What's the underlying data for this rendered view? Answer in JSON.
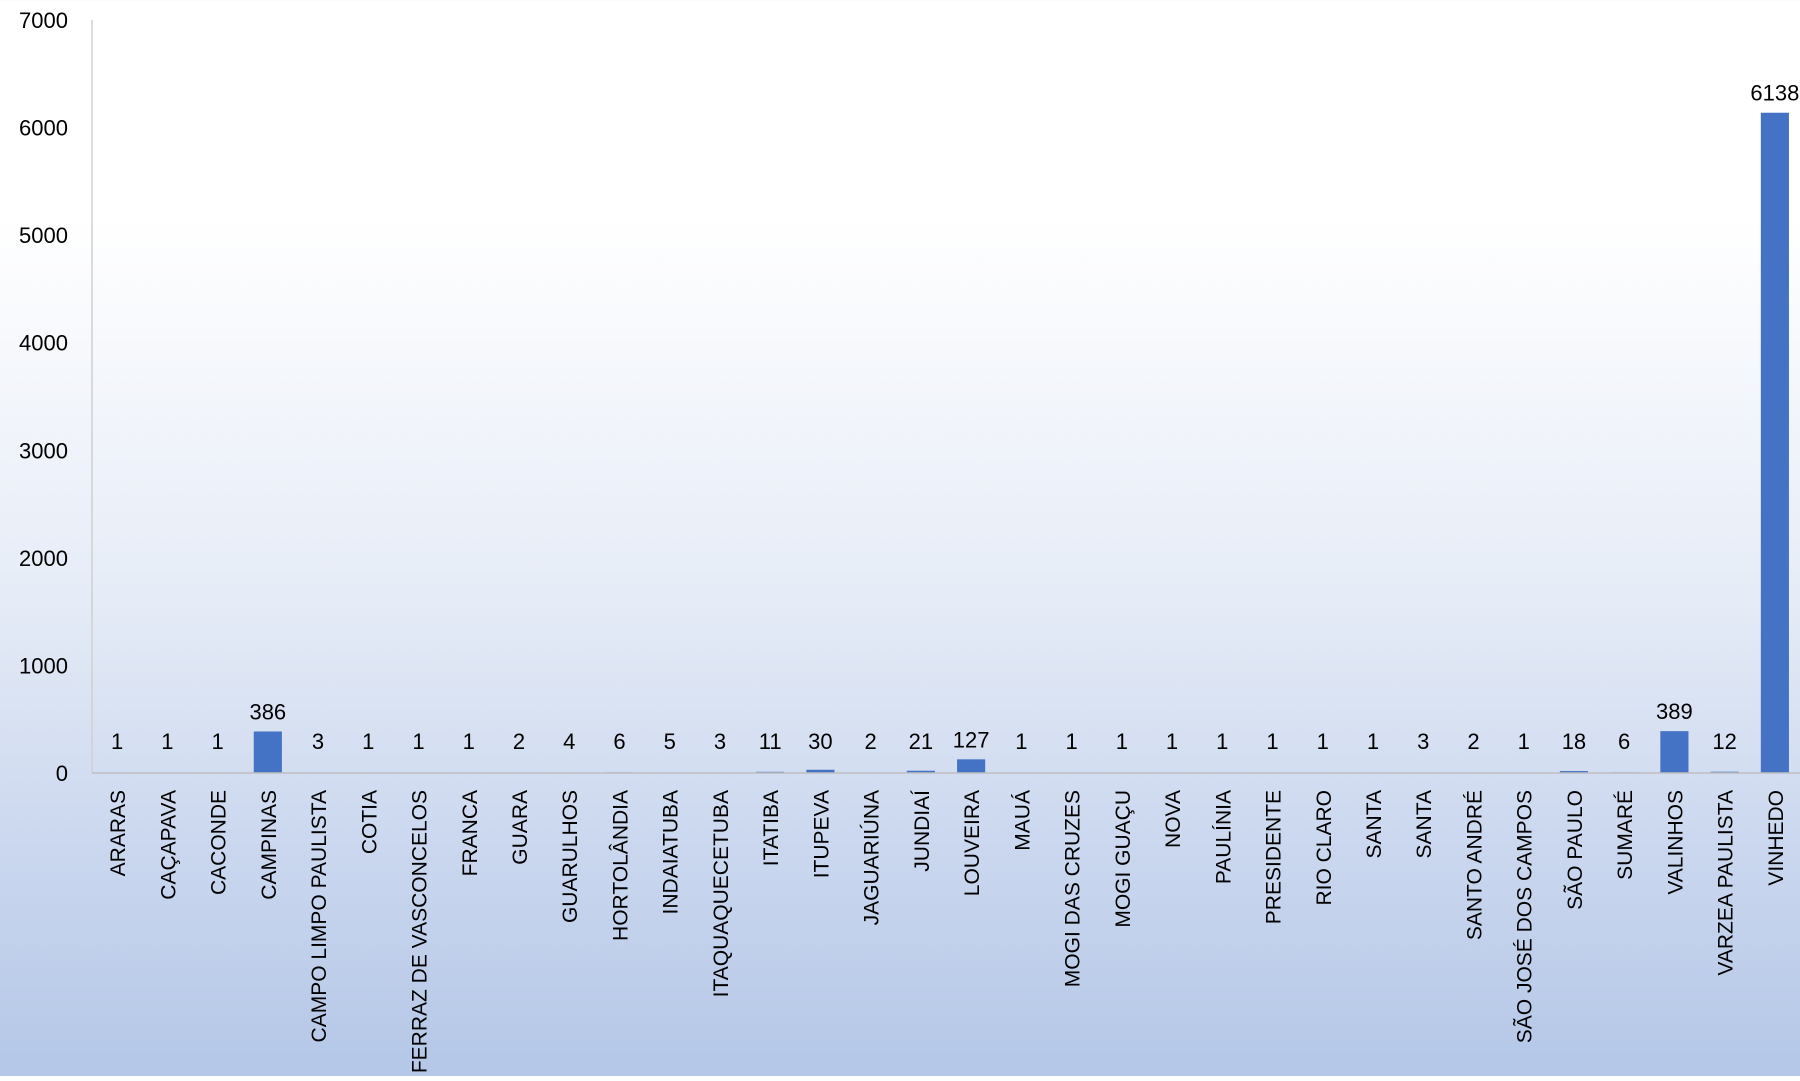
{
  "chart_data": {
    "type": "bar",
    "title": "",
    "xlabel": "",
    "ylabel": "",
    "ylim": [
      0,
      7000
    ],
    "yticks": [
      0,
      1000,
      2000,
      3000,
      4000,
      5000,
      6000,
      7000
    ],
    "grid": false,
    "legend": "none",
    "bar_color": "#4472c4",
    "categories": [
      "ARARAS",
      "CAÇAPAVA",
      "CACONDE",
      "CAMPINAS",
      "CAMPO LIMPO PAULISTA",
      "COTIA",
      "FERRAZ DE VASCONCELOS",
      "FRANCA",
      "GUARA",
      "GUARULHOS",
      "HORTOLÂNDIA",
      "INDAIATUBA",
      "ITAQUAQUECETUBA",
      "ITATIBA",
      "ITUPEVA",
      "JAGUARIÚNA",
      "JUNDIAÍ",
      "LOUVEIRA",
      "MAUÁ",
      "MOGI DAS CRUZES",
      "MOGI GUAÇU",
      "NOVA",
      "PAULÍNIA",
      "PRESIDENTE",
      "RIO CLARO",
      "SANTA",
      "SANTA",
      "SANTO ANDRÉ",
      "SÃO JOSÉ DOS CAMPOS",
      "SÃO PAULO",
      "SUMARÉ",
      "VALINHOS",
      "VARZEA PAULISTA",
      "VINHEDO"
    ],
    "values": [
      1,
      1,
      1,
      386,
      3,
      1,
      1,
      1,
      2,
      4,
      6,
      5,
      3,
      11,
      30,
      2,
      21,
      127,
      1,
      1,
      1,
      1,
      1,
      1,
      1,
      1,
      3,
      2,
      1,
      18,
      6,
      389,
      12,
      6138
    ]
  }
}
